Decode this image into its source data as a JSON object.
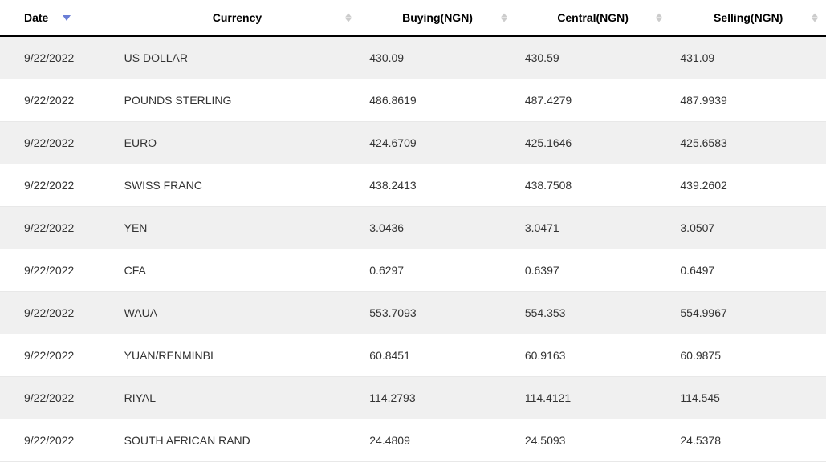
{
  "table": {
    "columns": [
      {
        "key": "date",
        "label": "Date",
        "sortable": true,
        "active_sort": "desc"
      },
      {
        "key": "currency",
        "label": "Currency",
        "sortable": true,
        "active_sort": null
      },
      {
        "key": "buying",
        "label": "Buying(NGN)",
        "sortable": true,
        "active_sort": null
      },
      {
        "key": "central",
        "label": "Central(NGN)",
        "sortable": true,
        "active_sort": null
      },
      {
        "key": "selling",
        "label": "Selling(NGN)",
        "sortable": true,
        "active_sort": null
      }
    ],
    "rows": [
      {
        "date": "9/22/2022",
        "currency": "US DOLLAR",
        "buying": "430.09",
        "central": "430.59",
        "selling": "431.09"
      },
      {
        "date": "9/22/2022",
        "currency": "POUNDS STERLING",
        "buying": "486.8619",
        "central": "487.4279",
        "selling": "487.9939"
      },
      {
        "date": "9/22/2022",
        "currency": "EURO",
        "buying": "424.6709",
        "central": "425.1646",
        "selling": "425.6583"
      },
      {
        "date": "9/22/2022",
        "currency": "SWISS FRANC",
        "buying": "438.2413",
        "central": "438.7508",
        "selling": "439.2602"
      },
      {
        "date": "9/22/2022",
        "currency": "YEN",
        "buying": "3.0436",
        "central": "3.0471",
        "selling": "3.0507"
      },
      {
        "date": "9/22/2022",
        "currency": "CFA",
        "buying": "0.6297",
        "central": "0.6397",
        "selling": "0.6497"
      },
      {
        "date": "9/22/2022",
        "currency": "WAUA",
        "buying": "553.7093",
        "central": "554.353",
        "selling": "554.9967"
      },
      {
        "date": "9/22/2022",
        "currency": "YUAN/RENMINBI",
        "buying": "60.8451",
        "central": "60.9163",
        "selling": "60.9875"
      },
      {
        "date": "9/22/2022",
        "currency": "RIYAL",
        "buying": "114.2793",
        "central": "114.4121",
        "selling": "114.545"
      },
      {
        "date": "9/22/2022",
        "currency": "SOUTH AFRICAN RAND",
        "buying": "24.4809",
        "central": "24.5093",
        "selling": "24.5378"
      }
    ]
  },
  "colors": {
    "row_odd": "#f0f0f0",
    "row_even": "#ffffff",
    "header_border": "#000000",
    "row_border": "#e8e8e8",
    "text": "#333333",
    "sort_inactive": "#cccccc",
    "sort_active": "#6a7ed6"
  }
}
